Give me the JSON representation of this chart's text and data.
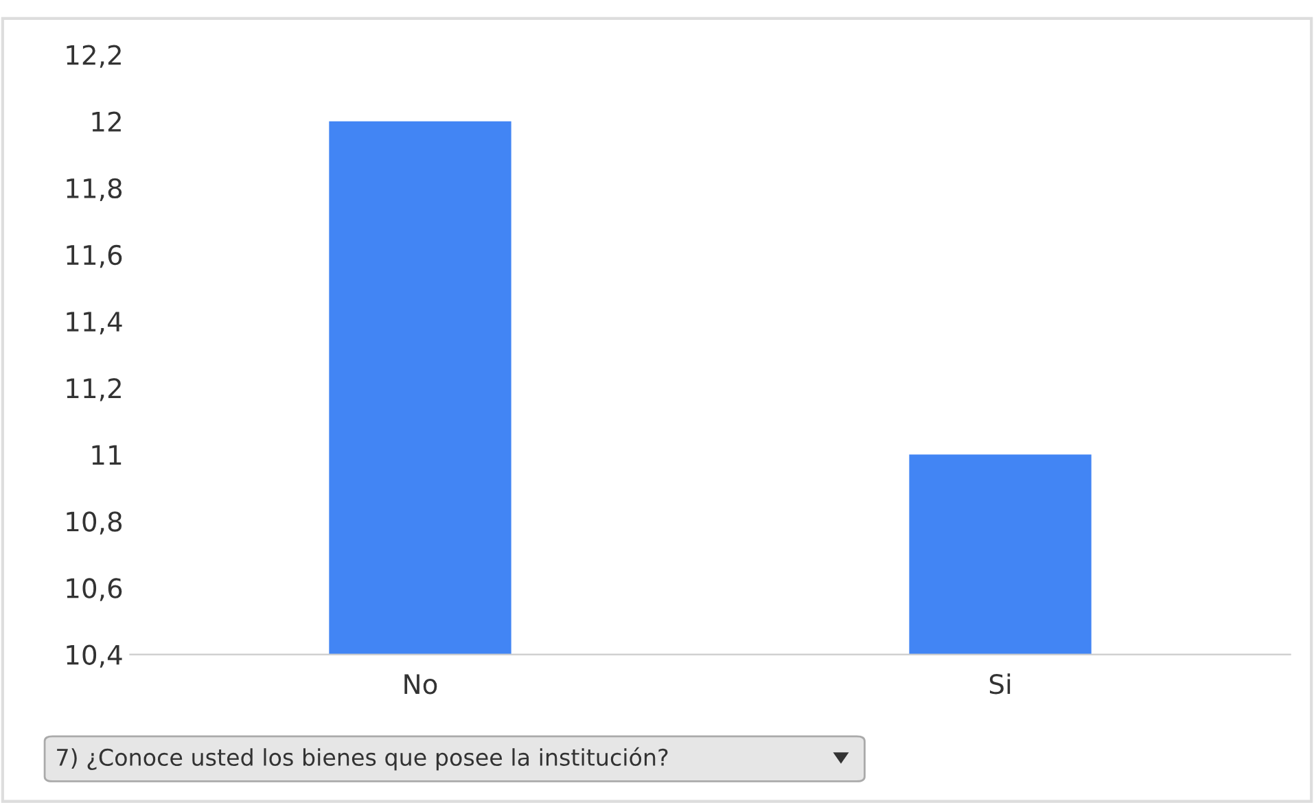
{
  "chart_data": {
    "type": "bar",
    "categories": [
      "No",
      "Si"
    ],
    "values": [
      12,
      11
    ],
    "color": "#4285f4",
    "ylim": [
      10.4,
      12.2
    ],
    "yticks": [
      {
        "value": 10.4,
        "label": "10,4"
      },
      {
        "value": 10.6,
        "label": "10,6"
      },
      {
        "value": 10.8,
        "label": "10,8"
      },
      11,
      {
        "value": 11.2,
        "label": "11,2"
      },
      {
        "value": 11.4,
        "label": "11,4"
      },
      {
        "value": 11.6,
        "label": "11,6"
      },
      {
        "value": 11.8,
        "label": "11,8"
      },
      12,
      {
        "value": 12.2,
        "label": "12,2"
      }
    ],
    "grid": false,
    "legend": false,
    "annotations": [
      "7) ¿Conoce usted los bienes que posee la institución?"
    ]
  }
}
